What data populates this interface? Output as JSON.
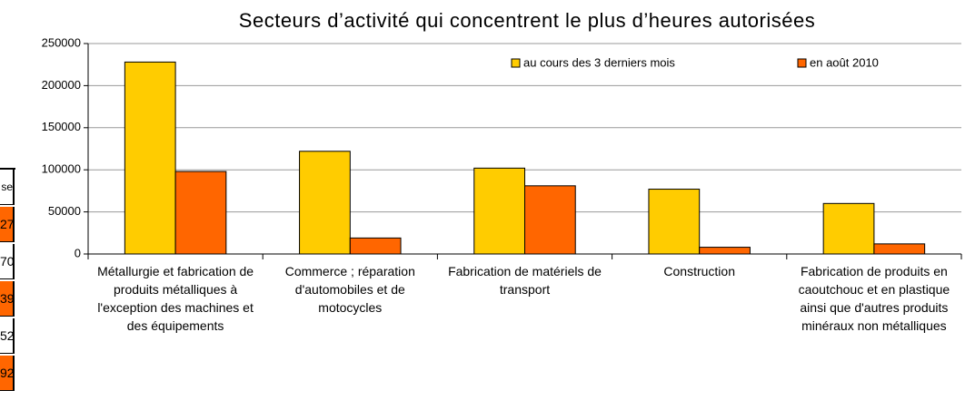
{
  "chart_data": {
    "type": "bar",
    "title": "Secteurs d’activité qui concentrent le plus d’heures autorisées",
    "categories": [
      "Métallurgie et fabrication de produits métalliques à l'exception des machines et des équipements",
      "Commerce ; réparation d'automobiles et de motocycles",
      "Fabrication de matériels de transport",
      "Construction",
      "Fabrication de produits en caoutchouc et en plastique ainsi que d'autres produits minéraux non métalliques"
    ],
    "series": [
      {
        "name": "au cours des 3 derniers mois",
        "color": "#ffcc00",
        "values": [
          228000,
          122000,
          102000,
          77000,
          60000
        ]
      },
      {
        "name": "en août 2010",
        "color": "#ff6600",
        "values": [
          98000,
          19000,
          81000,
          8000,
          12000
        ]
      }
    ],
    "ylim": [
      0,
      250000
    ],
    "yticks": [
      0,
      50000,
      100000,
      150000,
      200000,
      250000
    ],
    "grid": true,
    "legend": "top-right"
  },
  "side_table": {
    "cells": [
      "se",
      "27",
      "70",
      "39",
      "52",
      "92"
    ]
  }
}
